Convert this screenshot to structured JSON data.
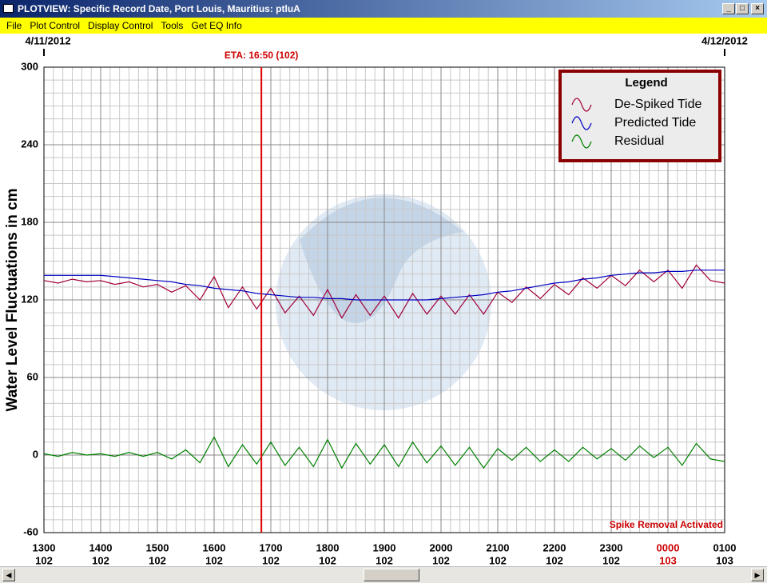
{
  "window": {
    "title": "PLOTVIEW: Specific Record Date, Port Louis, Mauritius: ptluA",
    "menu": [
      "File",
      "Plot Control",
      "Display Control",
      "Tools",
      "Get EQ Info"
    ]
  },
  "chart_data": {
    "type": "line",
    "y_label": "Water Level Fluctuations in cm",
    "annotation": "Spike Removal Activated",
    "eta": {
      "value": 16.833,
      "label": "ETA: 16:50 (102)"
    },
    "date_markers": [
      {
        "value": 13,
        "label": "4/11/2012"
      },
      {
        "value": 25,
        "label": "4/12/2012"
      }
    ],
    "xlim": [
      13,
      25
    ],
    "ylim": [
      -60,
      300
    ],
    "yticks": [
      -60,
      0,
      60,
      120,
      180,
      240,
      300
    ],
    "xticks": [
      {
        "value": 13,
        "label": "1300",
        "sublabel": "102"
      },
      {
        "value": 14,
        "label": "1400",
        "sublabel": "102"
      },
      {
        "value": 15,
        "label": "1500",
        "sublabel": "102"
      },
      {
        "value": 16,
        "label": "1600",
        "sublabel": "102"
      },
      {
        "value": 17,
        "label": "1700",
        "sublabel": "102"
      },
      {
        "value": 18,
        "label": "1800",
        "sublabel": "102"
      },
      {
        "value": 19,
        "label": "1900",
        "sublabel": "102"
      },
      {
        "value": 20,
        "label": "2000",
        "sublabel": "102"
      },
      {
        "value": 21,
        "label": "2100",
        "sublabel": "102"
      },
      {
        "value": 22,
        "label": "2200",
        "sublabel": "102"
      },
      {
        "value": 23,
        "label": "2300",
        "sublabel": "102"
      },
      {
        "value": 24,
        "label": "0000",
        "sublabel": "103",
        "color": "#cc0000"
      },
      {
        "value": 25,
        "label": "0100",
        "sublabel": "103"
      }
    ],
    "grid": true,
    "minor_grid_divisions": 6,
    "legend": {
      "title": "Legend",
      "position": "top-right"
    },
    "x": [
      13,
      13.25,
      13.5,
      13.75,
      14,
      14.25,
      14.5,
      14.75,
      15,
      15.25,
      15.5,
      15.75,
      16,
      16.25,
      16.5,
      16.75,
      17,
      17.25,
      17.5,
      17.75,
      18,
      18.25,
      18.5,
      18.75,
      19,
      19.25,
      19.5,
      19.75,
      20,
      20.25,
      20.5,
      20.75,
      21,
      21.25,
      21.5,
      21.75,
      22,
      22.25,
      22.5,
      22.75,
      23,
      23.25,
      23.5,
      23.75,
      24,
      24.25,
      24.5,
      24.75,
      25
    ],
    "series": [
      {
        "name": "De-Spiked Tide",
        "color": "#a0003c",
        "values": [
          135,
          133,
          136,
          134,
          135,
          132,
          134,
          130,
          132,
          126,
          131,
          120,
          138,
          114,
          130,
          113,
          129,
          110,
          123,
          108,
          128,
          106,
          124,
          108,
          123,
          106,
          125,
          109,
          123,
          109,
          124,
          109,
          126,
          118,
          130,
          121,
          132,
          124,
          137,
          129,
          139,
          131,
          143,
          134,
          143,
          129,
          147,
          135,
          133
        ]
      },
      {
        "name": "Predicted Tide",
        "color": "#0000c0",
        "values": [
          139,
          139,
          139,
          139,
          139,
          138,
          137,
          136,
          135,
          134,
          132,
          131,
          129,
          128,
          127,
          125,
          124,
          123,
          122,
          122,
          121,
          121,
          120,
          120,
          120,
          120,
          120,
          120,
          121,
          122,
          123,
          124,
          126,
          127,
          129,
          131,
          133,
          134,
          136,
          137,
          139,
          140,
          141,
          141,
          142,
          142,
          143,
          143,
          143
        ]
      },
      {
        "name": "Residual",
        "color": "#008000",
        "values": [
          1,
          -1,
          2,
          0,
          1,
          -1,
          2,
          -1,
          2,
          -3,
          4,
          -6,
          14,
          -9,
          8,
          -7,
          10,
          -8,
          6,
          -9,
          12,
          -10,
          9,
          -7,
          8,
          -9,
          10,
          -6,
          7,
          -8,
          6,
          -10,
          5,
          -4,
          6,
          -5,
          4,
          -5,
          6,
          -3,
          5,
          -4,
          7,
          -2,
          6,
          -8,
          9,
          -3,
          -5
        ]
      }
    ]
  }
}
